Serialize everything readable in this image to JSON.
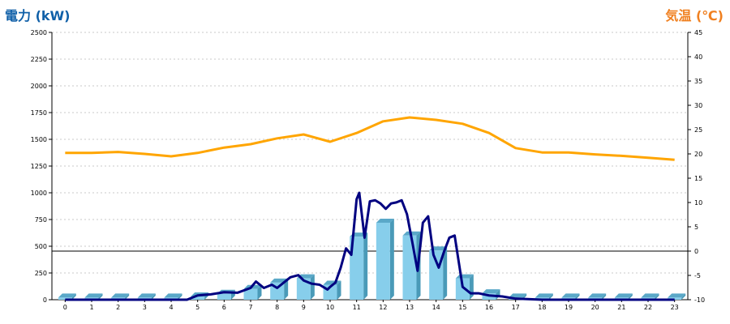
{
  "chart_data": {
    "type": "bar+line",
    "left_axis": {
      "label": "電力 (kW)",
      "ylim": [
        0,
        2500
      ],
      "ticks": [
        "0",
        "250",
        "500",
        "750",
        "1000",
        "1250",
        "1500",
        "1750",
        "2000",
        "2250",
        "2500"
      ]
    },
    "right_axis": {
      "label": "気温 (℃)",
      "ylim": [
        -10,
        45
      ],
      "ticks": [
        "-10",
        "-5",
        "0",
        "5",
        "10",
        "15",
        "20",
        "25",
        "30",
        "35",
        "40",
        "45"
      ]
    },
    "categories": [
      "0",
      "1",
      "2",
      "3",
      "4",
      "5",
      "6",
      "7",
      "8",
      "9",
      "10",
      "11",
      "12",
      "13",
      "14",
      "15",
      "16",
      "17",
      "18",
      "19",
      "20",
      "21",
      "22",
      "23"
    ],
    "grid": true,
    "series": [
      {
        "kind": "bar",
        "axis": "left",
        "color": "#87ceeb",
        "values": [
          20,
          20,
          20,
          20,
          20,
          30,
          55,
          100,
          160,
          200,
          140,
          590,
          720,
          600,
          460,
          200,
          60,
          20,
          20,
          20,
          20,
          20,
          20,
          20
        ]
      },
      {
        "kind": "line",
        "axis": "left",
        "color": "#000080",
        "x": [
          0,
          1,
          2,
          3,
          4,
          4.6,
          5,
          5.5,
          6,
          6.5,
          7,
          7.2,
          7.5,
          7.8,
          8,
          8.2,
          8.5,
          8.8,
          9,
          9.3,
          9.6,
          9.9,
          10,
          10.2,
          10.4,
          10.6,
          10.8,
          11,
          11.1,
          11.3,
          11.5,
          11.7,
          11.9,
          12.1,
          12.3,
          12.5,
          12.7,
          12.9,
          13.1,
          13.3,
          13.5,
          13.7,
          13.9,
          14.1,
          14.3,
          14.5,
          14.7,
          15,
          15.3,
          15.6,
          16,
          16.5,
          17,
          18,
          19,
          20,
          21,
          22,
          23
        ],
        "y": [
          0,
          0,
          0,
          0,
          0,
          0,
          40,
          50,
          70,
          65,
          110,
          170,
          110,
          140,
          110,
          150,
          210,
          230,
          180,
          150,
          140,
          95,
          120,
          160,
          300,
          480,
          420,
          940,
          1000,
          580,
          920,
          930,
          900,
          850,
          900,
          910,
          930,
          800,
          540,
          270,
          720,
          780,
          420,
          300,
          450,
          580,
          600,
          120,
          60,
          60,
          40,
          30,
          10,
          0,
          0,
          0,
          0,
          0,
          0
        ]
      },
      {
        "kind": "line",
        "axis": "right",
        "color": "#ffa500",
        "values": [
          20.2,
          20.2,
          20.4,
          20,
          19.5,
          20.2,
          21.3,
          22,
          23.2,
          24,
          22.5,
          24.3,
          26.7,
          27.5,
          27,
          26.2,
          24.3,
          21.2,
          20.3,
          20.3,
          19.9,
          19.6,
          19.2,
          18.8
        ]
      }
    ]
  }
}
